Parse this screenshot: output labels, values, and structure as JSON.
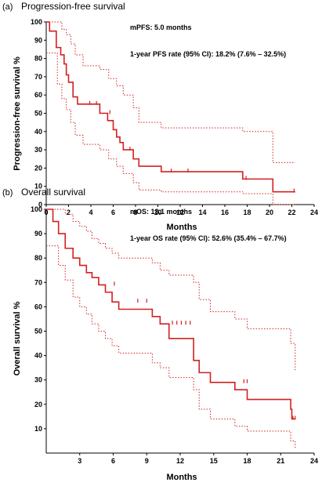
{
  "chart_data": [
    {
      "type": "line",
      "panel_label": "(a)",
      "title": "Progression-free survival",
      "xlabel": "Months",
      "ylabel": "Progression-free survival %",
      "xlim": [
        0,
        24
      ],
      "ylim": [
        0,
        100
      ],
      "x_ticks": [
        0,
        2,
        4,
        6,
        8,
        10,
        12,
        14,
        16,
        18,
        20,
        22,
        24
      ],
      "y_ticks": [
        0,
        10,
        20,
        30,
        40,
        50,
        60,
        70,
        80,
        90,
        100
      ],
      "annotations": [
        "mPFS: 5.0 months",
        "1-year PFS rate (95% CI): 18.2% (7.6% – 32.5%)"
      ],
      "series": [
        {
          "role": "estimate",
          "color": "#d42020",
          "style": "solid",
          "x": [
            0,
            0.3,
            0.3,
            0.9,
            0.9,
            1.3,
            1.3,
            1.6,
            1.6,
            1.8,
            1.8,
            2.0,
            2.0,
            2.4,
            2.4,
            2.8,
            2.8,
            3.3,
            3.3,
            4.8,
            4.8,
            5.5,
            5.5,
            6.0,
            6.0,
            6.3,
            6.3,
            6.6,
            6.6,
            6.9,
            6.9,
            7.3,
            7.3,
            7.8,
            7.8,
            8.3,
            8.3,
            10.3,
            10.3,
            17.6,
            17.6,
            20.3,
            20.3,
            22.3
          ],
          "y": [
            100,
            100,
            95,
            95,
            86,
            86,
            82,
            82,
            77,
            77,
            71,
            71,
            67,
            67,
            59,
            59,
            55,
            55,
            55,
            55,
            50,
            50,
            46,
            46,
            41,
            41,
            37,
            37,
            34,
            34,
            30,
            30,
            30,
            30,
            25,
            25,
            21,
            21,
            18,
            18,
            14,
            14,
            7,
            7
          ]
        },
        {
          "role": "upper-ci",
          "color": "#d42020",
          "style": "dotted",
          "x": [
            0,
            0.4,
            1.0,
            1.4,
            1.8,
            2.2,
            2.6,
            3.3,
            4.8,
            5.6,
            6.3,
            6.9,
            7.8,
            8.3,
            10.3,
            17.6,
            20.3,
            22.3
          ],
          "y": [
            100,
            100,
            100,
            96,
            93,
            88,
            82,
            76,
            74,
            69,
            65,
            60,
            53,
            45,
            42,
            40,
            23,
            23
          ]
        },
        {
          "role": "lower-ci",
          "color": "#d42020",
          "style": "dotted",
          "x": [
            0,
            0.4,
            1.0,
            1.4,
            1.8,
            2.2,
            2.6,
            3.3,
            4.8,
            5.6,
            6.3,
            6.9,
            7.8,
            8.3,
            10.3,
            17.6,
            20.3,
            22.3
          ],
          "y": [
            83,
            83,
            66,
            58,
            52,
            45,
            38,
            33,
            30,
            25,
            21,
            17,
            12,
            8,
            7,
            6,
            0,
            0
          ]
        }
      ],
      "censor_marks": [
        {
          "x": 3.9,
          "y": 55
        },
        {
          "x": 4.5,
          "y": 55
        },
        {
          "x": 5.7,
          "y": 50
        },
        {
          "x": 7.5,
          "y": 30
        },
        {
          "x": 11.2,
          "y": 18
        },
        {
          "x": 12.7,
          "y": 18
        },
        {
          "x": 17.9,
          "y": 14
        },
        {
          "x": 22.2,
          "y": 7
        }
      ]
    },
    {
      "type": "line",
      "panel_label": "(b)",
      "title": "Overall survival",
      "xlabel": "Months",
      "ylabel": "Overall survival %",
      "xlim": [
        0,
        24
      ],
      "ylim": [
        0,
        100
      ],
      "x_ticks": [
        3,
        6,
        9,
        12,
        15,
        18,
        21,
        24
      ],
      "y_ticks": [
        10,
        20,
        30,
        40,
        50,
        60,
        70,
        80,
        90,
        100
      ],
      "annotations": [
        "mOS: 13.1 months",
        "1-year OS rate (95% CI): 52.6% (35.4% – 67.7%)"
      ],
      "series": [
        {
          "role": "estimate",
          "color": "#d42020",
          "style": "solid",
          "x": [
            0,
            0.6,
            0.6,
            1.1,
            1.1,
            1.7,
            1.7,
            2.4,
            2.4,
            3.0,
            3.0,
            3.6,
            3.6,
            4.1,
            4.1,
            4.7,
            4.7,
            5.3,
            5.3,
            5.9,
            5.9,
            6.5,
            6.5,
            9.5,
            9.5,
            10.2,
            10.2,
            11.0,
            11.0,
            13.2,
            13.2,
            13.7,
            13.7,
            14.7,
            14.7,
            16.9,
            16.9,
            18.0,
            18.0,
            21.9,
            21.9,
            22.0,
            22.0,
            22.3
          ],
          "y": [
            100,
            100,
            95,
            95,
            90,
            90,
            84,
            84,
            80,
            80,
            77,
            77,
            74,
            74,
            72,
            72,
            69,
            69,
            66,
            66,
            62,
            62,
            59,
            59,
            56,
            56,
            53,
            53,
            47,
            47,
            38,
            38,
            33,
            33,
            29,
            29,
            26,
            26,
            22,
            22,
            18,
            18,
            14,
            14
          ]
        },
        {
          "role": "upper-ci",
          "color": "#d42020",
          "style": "dotted",
          "x": [
            0,
            1.1,
            1.7,
            2.4,
            3.0,
            3.6,
            4.1,
            4.7,
            5.3,
            5.9,
            6.5,
            9.5,
            10.2,
            11.0,
            13.2,
            13.7,
            14.7,
            16.9,
            18.0,
            21.9,
            22.3
          ],
          "y": [
            100,
            100,
            98,
            95,
            93,
            91,
            88,
            86,
            84,
            82,
            80,
            78,
            75,
            73,
            70,
            63,
            58,
            55,
            51,
            45,
            34
          ]
        },
        {
          "role": "lower-ci",
          "color": "#d42020",
          "style": "dotted",
          "x": [
            0,
            0.6,
            1.1,
            1.7,
            2.4,
            3.0,
            3.6,
            4.1,
            4.7,
            5.3,
            5.9,
            6.5,
            9.5,
            10.2,
            11.0,
            13.2,
            13.7,
            14.7,
            16.9,
            18.0,
            21.9,
            22.3
          ],
          "y": [
            85,
            85,
            77,
            71,
            64,
            60,
            57,
            53,
            50,
            47,
            44,
            41,
            37,
            35,
            31,
            26,
            18,
            14,
            11,
            9,
            5,
            2
          ]
        }
      ],
      "censor_marks": [
        {
          "x": 6.1,
          "y": 69
        },
        {
          "x": 8.2,
          "y": 62
        },
        {
          "x": 9.0,
          "y": 62
        },
        {
          "x": 11.3,
          "y": 53
        },
        {
          "x": 11.7,
          "y": 53
        },
        {
          "x": 12.1,
          "y": 53
        },
        {
          "x": 12.5,
          "y": 53
        },
        {
          "x": 12.9,
          "y": 53
        },
        {
          "x": 17.7,
          "y": 29
        },
        {
          "x": 18.0,
          "y": 29
        },
        {
          "x": 22.1,
          "y": 14
        },
        {
          "x": 22.3,
          "y": 14
        }
      ]
    }
  ]
}
